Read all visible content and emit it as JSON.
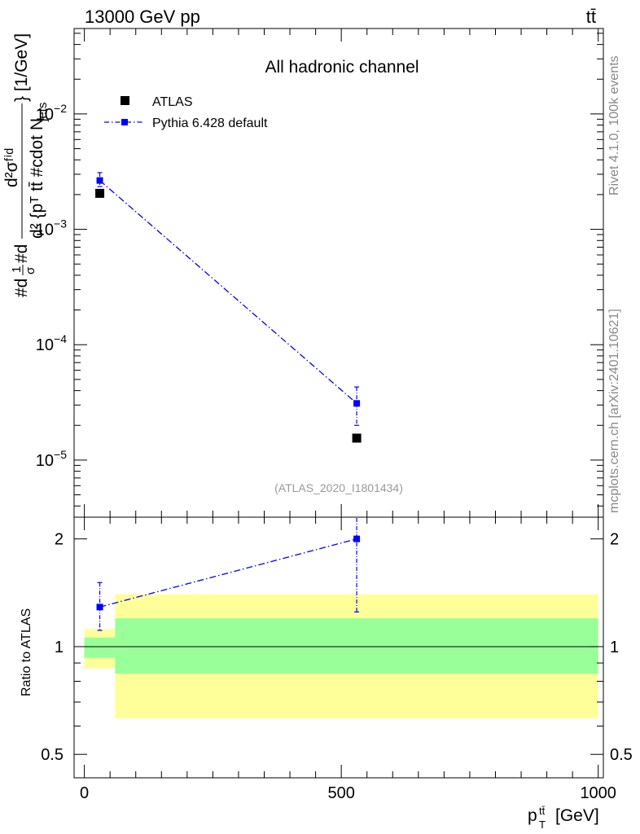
{
  "header": {
    "left": "13000 GeV pp",
    "right": "tt̄"
  },
  "side_labels": {
    "rivet": "Rivet 4.1.0,  100k events",
    "mcplots": "mcplots.cern.ch [arXiv:2401.10621]"
  },
  "chart_data": [
    {
      "type": "scatter",
      "panel": "main",
      "title": "All hadronic channel",
      "ylabel": "#d\\frac{1}{\\sigma}#d\\frac{d^{2}\\sigma^{fid}}{d^{2} {p_{T}^{t\\bar{t}} #cdot N_{jets}}} [1/GeV]",
      "ylabel_parts": {
        "outer": "#d",
        "frac_num": "1",
        "frac_den": "σ",
        "mid": "#d",
        "num": "d²σᶠⁱᵈ",
        "den": "d² {pᵀ tt̄ #cdot N",
        "den_sub": "jets",
        "unit": "} [1/GeV]"
      },
      "yscale": "log",
      "ylim": [
        3.2e-06,
        0.055
      ],
      "xlim": [
        -20,
        1010
      ],
      "ytick_labels": [
        {
          "base": "10",
          "exp": "−5",
          "value": 1e-05
        },
        {
          "base": "10",
          "exp": "−4",
          "value": 0.0001
        },
        {
          "base": "10",
          "exp": "−3",
          "value": 0.001
        },
        {
          "base": "10",
          "exp": "−2",
          "value": 0.01
        }
      ],
      "legend": {
        "placement": "top-left",
        "entries": [
          "ATLAS",
          "Pythia 6.428 default"
        ]
      },
      "series": [
        {
          "name": "ATLAS",
          "marker": "square",
          "color": "#000000",
          "x": [
            30,
            530
          ],
          "y": [
            0.00205,
            1.55e-05
          ]
        },
        {
          "name": "Pythia 6.428 default",
          "marker": "square",
          "line": "dash-dot",
          "color": "#0000ff",
          "x": [
            30,
            530
          ],
          "y": [
            0.00265,
            3.1e-05
          ],
          "yerr_low": [
            0.0003,
            1.1e-05
          ],
          "yerr_high": [
            0.00045,
            1.2e-05
          ]
        }
      ],
      "annotation": "(ATLAS_2020_I1801434)"
    },
    {
      "type": "scatter",
      "panel": "ratio",
      "ylabel": "Ratio to ATLAS",
      "yscale": "log",
      "ylim": [
        0.43,
        2.3
      ],
      "xlim": [
        -20,
        1010
      ],
      "xlabel": "p_{T}^{t\\bar{t}} [GeV]",
      "xlabel_parts": {
        "base": "p",
        "sup": "tt̄",
        "sub": "T",
        "unit": "[GeV]"
      },
      "ytick_labels": [
        "0.5",
        "1",
        "2"
      ],
      "xtick_labels": [
        "0",
        "500",
        "1000"
      ],
      "bands": [
        {
          "name": "total uncertainty",
          "color": "#ffff99",
          "bins": [
            {
              "x0": 0,
              "x1": 60,
              "lo": 0.87,
              "hi": 1.12
            },
            {
              "x0": 60,
              "x1": 1000,
              "lo": 0.63,
              "hi": 1.4
            }
          ]
        },
        {
          "name": "stat uncertainty",
          "color": "#99ff99",
          "bins": [
            {
              "x0": 0,
              "x1": 60,
              "lo": 0.93,
              "hi": 1.06
            },
            {
              "x0": 60,
              "x1": 1000,
              "lo": 0.84,
              "hi": 1.2
            }
          ]
        }
      ],
      "series": [
        {
          "name": "Pythia 6.428 default",
          "marker": "square",
          "line": "dash-dot",
          "color": "#0000ff",
          "x": [
            30,
            530
          ],
          "y": [
            1.29,
            2.0
          ],
          "yerr_low": [
            0.18,
            0.75
          ],
          "yerr_high": [
            0.22,
            0.35
          ]
        }
      ]
    }
  ]
}
